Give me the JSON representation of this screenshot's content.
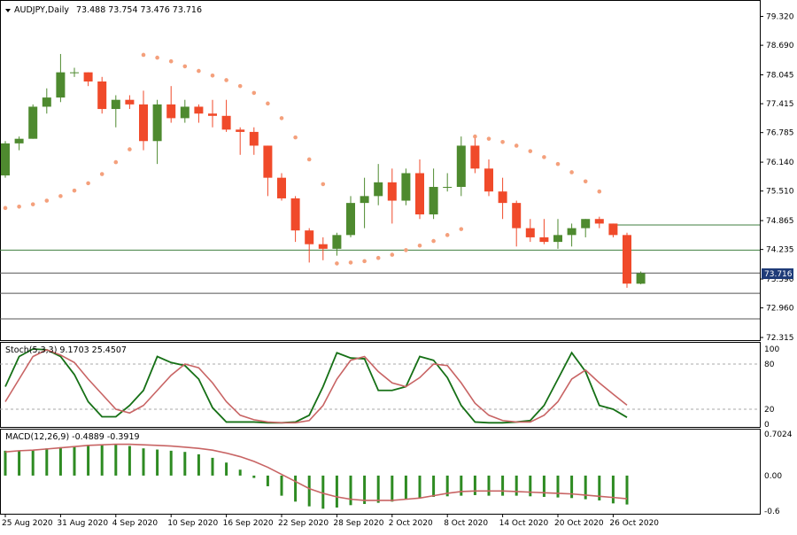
{
  "chart_header": {
    "symbol_timeframe": "AUDJPY,Daily",
    "ohlc": "73.488 73.754 73.476 73.716"
  },
  "current_price_label": "73.716",
  "colors": {
    "bull": "#4e8a2f",
    "bear": "#f04a2a",
    "sar": "#f4a07c",
    "level_line": "#3f7f3f",
    "stoch_main": "#167016",
    "stoch_signal": "#c86464",
    "macd_hist": "#2e8b22",
    "macd_signal": "#c86464",
    "price_tag_bg": "#1f3b78"
  },
  "stoch_label": "Stoch(5,3,3) 9.1703 25.4507",
  "macd_label": "MACD(12,26,9) -0.4889 -0.3919",
  "chart_data": [
    {
      "type": "candlestick",
      "title": "AUDJPY,Daily",
      "ylim": [
        72.315,
        79.33
      ],
      "y_ticks": [
        "79.320",
        "78.690",
        "78.045",
        "77.415",
        "76.785",
        "76.140",
        "75.510",
        "74.865",
        "74.235",
        "73.590",
        "72.960",
        "72.315"
      ],
      "x_tick_labels": [
        "25 Aug 2020",
        "31 Aug 2020",
        "4 Sep 2020",
        "10 Sep 2020",
        "16 Sep 2020",
        "22 Sep 2020",
        "28 Sep 2020",
        "2 Oct 2020",
        "8 Oct 2020",
        "14 Oct 2020",
        "20 Oct 2020",
        "26 Oct 2020"
      ],
      "ohlc": [
        [
          75.85,
          76.6,
          75.8,
          76.55
        ],
        [
          76.55,
          76.7,
          76.4,
          76.65
        ],
        [
          76.65,
          77.4,
          76.65,
          77.35
        ],
        [
          77.35,
          77.75,
          77.2,
          77.55
        ],
        [
          77.55,
          78.5,
          77.45,
          78.1
        ],
        [
          78.1,
          78.2,
          78.0,
          78.1
        ],
        [
          78.1,
          78.1,
          77.8,
          77.9
        ],
        [
          77.9,
          78.0,
          77.2,
          77.3
        ],
        [
          77.3,
          77.6,
          76.9,
          77.5
        ],
        [
          77.5,
          77.6,
          77.3,
          77.4
        ],
        [
          77.4,
          77.7,
          76.4,
          76.6
        ],
        [
          76.6,
          77.5,
          76.1,
          77.4
        ],
        [
          77.4,
          77.8,
          77.0,
          77.1
        ],
        [
          77.1,
          77.5,
          77.0,
          77.35
        ],
        [
          77.35,
          77.4,
          77.0,
          77.2
        ],
        [
          77.2,
          77.5,
          76.9,
          77.15
        ],
        [
          77.15,
          77.5,
          76.8,
          76.85
        ],
        [
          76.85,
          76.9,
          76.3,
          76.8
        ],
        [
          76.8,
          76.9,
          76.3,
          76.5
        ],
        [
          76.5,
          76.5,
          75.4,
          75.8
        ],
        [
          75.8,
          75.9,
          75.3,
          75.35
        ],
        [
          75.35,
          75.4,
          74.4,
          74.65
        ],
        [
          74.65,
          74.7,
          73.95,
          74.35
        ],
        [
          74.35,
          74.5,
          74.0,
          74.25
        ],
        [
          74.25,
          74.6,
          74.1,
          74.55
        ],
        [
          74.55,
          75.4,
          74.5,
          75.25
        ],
        [
          75.25,
          75.8,
          74.7,
          75.4
        ],
        [
          75.4,
          76.1,
          75.2,
          75.7
        ],
        [
          75.7,
          76.0,
          74.8,
          75.3
        ],
        [
          75.3,
          76.0,
          75.2,
          75.9
        ],
        [
          75.9,
          76.2,
          74.9,
          75.0
        ],
        [
          75.0,
          76.0,
          74.9,
          75.6
        ],
        [
          75.6,
          75.9,
          75.5,
          75.6
        ],
        [
          75.6,
          76.7,
          75.4,
          76.5
        ],
        [
          76.5,
          76.7,
          75.9,
          76.0
        ],
        [
          76.0,
          76.2,
          75.4,
          75.5
        ],
        [
          75.5,
          75.8,
          74.9,
          75.25
        ],
        [
          75.25,
          75.3,
          74.3,
          74.7
        ],
        [
          74.7,
          74.9,
          74.4,
          74.5
        ],
        [
          74.5,
          74.9,
          74.35,
          74.4
        ],
        [
          74.4,
          74.9,
          74.25,
          74.55
        ],
        [
          74.55,
          74.8,
          74.3,
          74.7
        ],
        [
          74.7,
          74.9,
          74.5,
          74.9
        ],
        [
          74.9,
          74.95,
          74.7,
          74.8
        ],
        [
          74.8,
          74.8,
          74.5,
          74.55
        ],
        [
          74.55,
          74.6,
          73.4,
          73.49
        ],
        [
          73.488,
          73.754,
          73.476,
          73.716
        ]
      ],
      "parabolic_sar": [
        [
          0,
          75.14
        ],
        [
          1,
          75.17
        ],
        [
          2,
          75.22
        ],
        [
          3,
          75.3
        ],
        [
          4,
          75.4
        ],
        [
          5,
          75.52
        ],
        [
          6,
          75.68
        ],
        [
          7,
          75.88
        ],
        [
          8,
          76.14
        ],
        [
          9,
          76.42
        ],
        [
          10,
          78.48
        ],
        [
          11,
          78.42
        ],
        [
          12,
          78.34
        ],
        [
          13,
          78.23
        ],
        [
          14,
          78.13
        ],
        [
          15,
          78.03
        ],
        [
          16,
          77.93
        ],
        [
          17,
          77.8
        ],
        [
          18,
          77.65
        ],
        [
          19,
          77.42
        ],
        [
          20,
          77.1
        ],
        [
          21,
          76.68
        ],
        [
          22,
          76.2
        ],
        [
          23,
          75.66
        ],
        [
          24,
          73.93
        ],
        [
          25,
          73.95
        ],
        [
          26,
          73.98
        ],
        [
          27,
          74.05
        ],
        [
          28,
          74.12
        ],
        [
          29,
          74.22
        ],
        [
          30,
          74.32
        ],
        [
          31,
          74.42
        ],
        [
          32,
          74.55
        ],
        [
          33,
          74.68
        ],
        [
          34,
          76.7
        ],
        [
          35,
          76.65
        ],
        [
          36,
          76.58
        ],
        [
          37,
          76.5
        ],
        [
          38,
          76.38
        ],
        [
          39,
          76.25
        ],
        [
          40,
          76.1
        ],
        [
          41,
          75.92
        ],
        [
          42,
          75.72
        ],
        [
          43,
          75.5
        ]
      ],
      "horizontal_levels": [
        74.22,
        74.77,
        73.72,
        73.28,
        72.72
      ]
    },
    {
      "type": "line",
      "title": "Stoch(5,3,3)",
      "ylim": [
        0,
        100
      ],
      "y_ticks": [
        "100",
        "80",
        "20",
        "0"
      ],
      "levels": [
        80,
        20
      ],
      "series": [
        {
          "name": "Main",
          "values": [
            50,
            90,
            100,
            99,
            90,
            66,
            30,
            10,
            10,
            25,
            45,
            90,
            82,
            78,
            60,
            22,
            3,
            3,
            3,
            2,
            2,
            3,
            12,
            50,
            95,
            88,
            87,
            45,
            45,
            50,
            90,
            85,
            62,
            25,
            3,
            2,
            2,
            3,
            5,
            25,
            60,
            95,
            70,
            25,
            20,
            9.17
          ]
        },
        {
          "name": "Signal",
          "values": [
            30,
            60,
            90,
            99,
            92,
            82,
            60,
            40,
            20,
            15,
            25,
            45,
            65,
            80,
            75,
            55,
            30,
            12,
            6,
            3,
            2,
            2,
            5,
            25,
            60,
            85,
            90,
            70,
            55,
            50,
            62,
            80,
            78,
            55,
            28,
            12,
            5,
            3,
            3,
            12,
            30,
            60,
            72,
            55,
            40,
            25.45
          ]
        }
      ]
    },
    {
      "type": "bar",
      "title": "MACD(12,26,9)",
      "ylim": [
        -0.6,
        0.7024
      ],
      "y_ticks": [
        "0.7024",
        "0.00",
        "-0.6"
      ],
      "series": [
        {
          "name": "MACD",
          "values": [
            0.42,
            0.42,
            0.44,
            0.46,
            0.48,
            0.5,
            0.52,
            0.53,
            0.53,
            0.5,
            0.46,
            0.44,
            0.42,
            0.4,
            0.36,
            0.3,
            0.22,
            0.1,
            -0.04,
            -0.18,
            -0.34,
            -0.44,
            -0.52,
            -0.56,
            -0.54,
            -0.5,
            -0.48,
            -0.46,
            -0.44,
            -0.4,
            -0.38,
            -0.36,
            -0.35,
            -0.34,
            -0.33,
            -0.34,
            -0.34,
            -0.34,
            -0.35,
            -0.36,
            -0.37,
            -0.38,
            -0.4,
            -0.42,
            -0.47,
            -0.4889
          ]
        },
        {
          "name": "Signal",
          "values": [
            0.4,
            0.42,
            0.43,
            0.45,
            0.47,
            0.49,
            0.51,
            0.52,
            0.53,
            0.53,
            0.52,
            0.51,
            0.5,
            0.48,
            0.46,
            0.43,
            0.38,
            0.32,
            0.24,
            0.14,
            0.02,
            -0.1,
            -0.22,
            -0.3,
            -0.36,
            -0.4,
            -0.42,
            -0.42,
            -0.42,
            -0.4,
            -0.38,
            -0.34,
            -0.3,
            -0.27,
            -0.26,
            -0.26,
            -0.26,
            -0.27,
            -0.28,
            -0.29,
            -0.3,
            -0.31,
            -0.33,
            -0.35,
            -0.37,
            -0.3919
          ]
        }
      ]
    }
  ]
}
